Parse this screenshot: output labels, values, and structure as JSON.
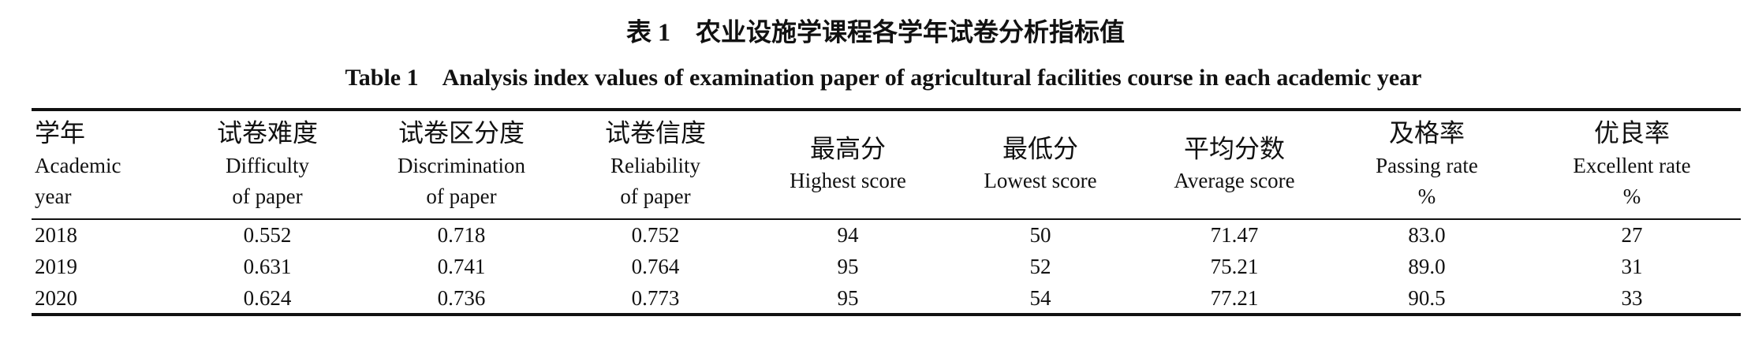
{
  "caption": {
    "zh": "表 1　农业设施学课程各学年试卷分析指标值",
    "en": "Table 1　Analysis index values of examination paper of agricultural facilities course in each academic year"
  },
  "table": {
    "headers": [
      [
        "学年",
        "Academic",
        "year"
      ],
      [
        "试卷难度",
        "Difficulty",
        "of paper"
      ],
      [
        "试卷区分度",
        "Discrimination",
        "of paper"
      ],
      [
        "试卷信度",
        "Reliability",
        "of paper"
      ],
      [
        "最高分",
        "Highest score"
      ],
      [
        "最低分",
        "Lowest score"
      ],
      [
        "平均分数",
        "Average score"
      ],
      [
        "及格率",
        "Passing rate",
        "%"
      ],
      [
        "优良率",
        "Excellent rate",
        "%"
      ]
    ],
    "rows": [
      [
        "2018",
        "0.552",
        "0.718",
        "0.752",
        "94",
        "50",
        "71.47",
        "83.0",
        "27"
      ],
      [
        "2019",
        "0.631",
        "0.741",
        "0.764",
        "95",
        "52",
        "75.21",
        "89.0",
        "31"
      ],
      [
        "2020",
        "0.624",
        "0.736",
        "0.773",
        "95",
        "54",
        "77.21",
        "90.5",
        "33"
      ]
    ]
  }
}
